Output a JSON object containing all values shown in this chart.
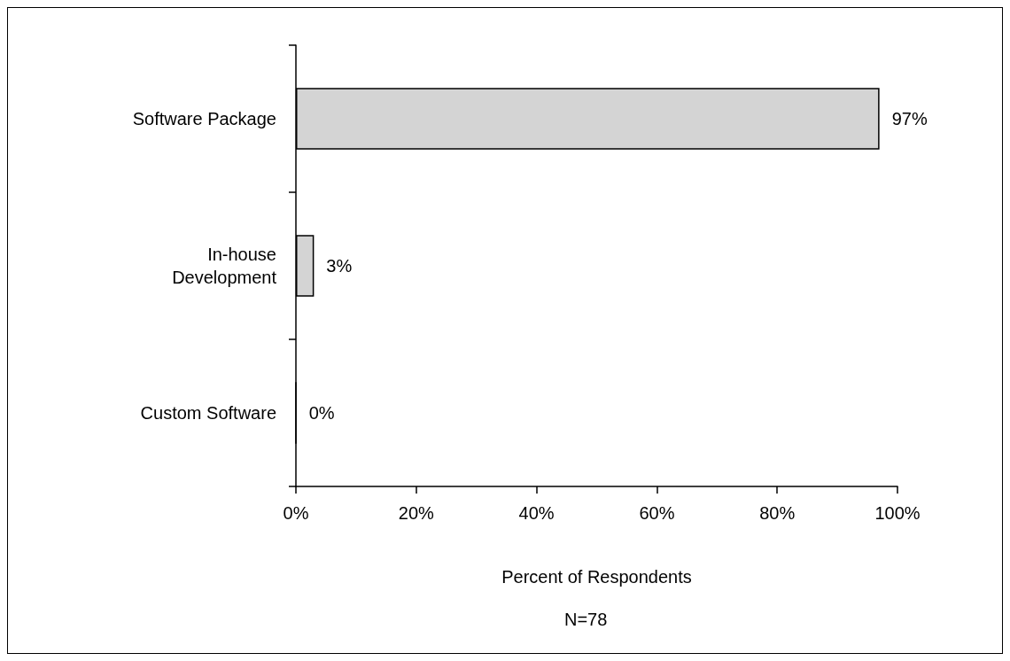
{
  "chart_data": {
    "type": "bar",
    "orientation": "horizontal",
    "categories": [
      "Software Package",
      "In-house\nDevelopment",
      "Custom Software"
    ],
    "values": [
      97,
      3,
      0
    ],
    "value_labels": [
      "97%",
      "3%",
      "0%"
    ],
    "color": "#d4d4d4",
    "xlabel": "Percent of Respondents",
    "annotations": [
      "N=78"
    ],
    "xlim": [
      0,
      100
    ],
    "xticks": [
      {
        "value": 0,
        "label": "0%"
      },
      {
        "value": 20,
        "label": "20%"
      },
      {
        "value": 40,
        "label": "40%"
      },
      {
        "value": 60,
        "label": "60%"
      },
      {
        "value": 80,
        "label": "80%"
      },
      {
        "value": 100,
        "label": "100%"
      }
    ],
    "grid": false
  }
}
